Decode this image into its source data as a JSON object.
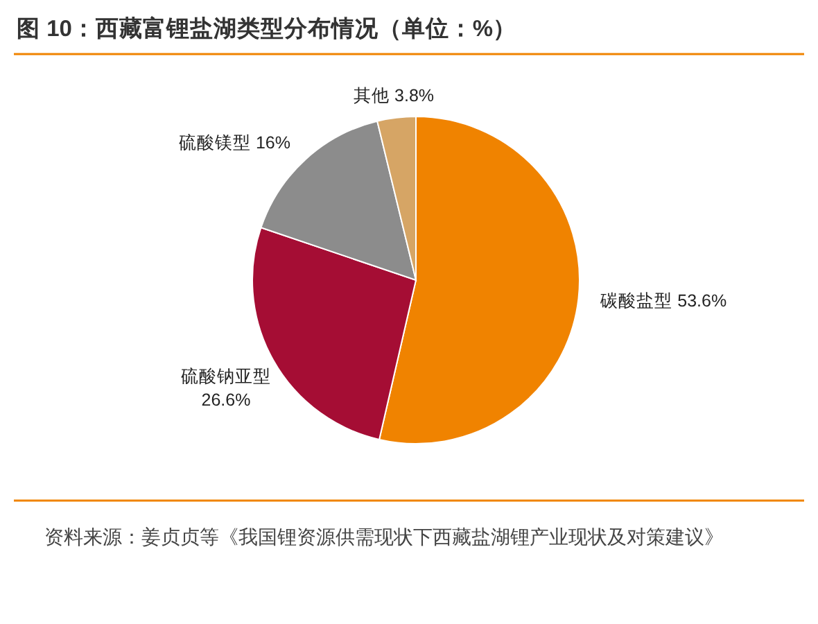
{
  "chart_data": {
    "type": "pie",
    "title": "图 10：西藏富锂盐湖类型分布情况（单位：%）",
    "categories": [
      "碳酸盐型",
      "硫酸钠亚型",
      "硫酸镁型",
      "其他"
    ],
    "values": [
      53.6,
      26.6,
      16,
      3.8
    ],
    "colors": [
      "#f08300",
      "#a50d34",
      "#8c8c8c",
      "#d6a565"
    ],
    "value_labels": [
      "53.6%",
      "26.6%",
      "16%",
      "3.8%"
    ],
    "annotations": [
      "资料来源：姜贞贞等《我国锂资源供需现状下西藏盐湖锂产业现状及对策建议》"
    ]
  }
}
